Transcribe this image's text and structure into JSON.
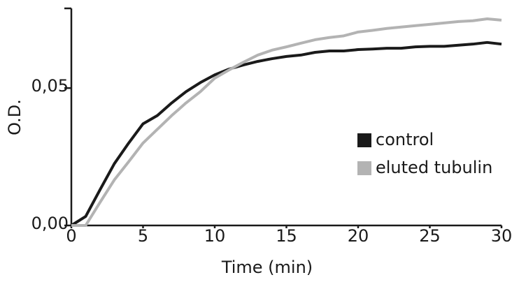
{
  "chart_data": {
    "type": "line",
    "xlabel": "Time (min)",
    "ylabel": "O.D.",
    "x": [
      0,
      1,
      2,
      3,
      4,
      5,
      6,
      7,
      8,
      9,
      10,
      11,
      12,
      13,
      14,
      15,
      16,
      17,
      18,
      19,
      20,
      21,
      22,
      23,
      24,
      25,
      26,
      27,
      28,
      29,
      30
    ],
    "series": [
      {
        "name": "control",
        "color": "#1a1a1a",
        "values": [
          0,
          0.0033,
          0.013,
          0.0225,
          0.03,
          0.037,
          0.04,
          0.0446,
          0.0487,
          0.052,
          0.0548,
          0.0569,
          0.0584,
          0.0597,
          0.0607,
          0.0615,
          0.062,
          0.063,
          0.0635,
          0.0635,
          0.064,
          0.0642,
          0.0645,
          0.0645,
          0.065,
          0.0652,
          0.0652,
          0.0656,
          0.066,
          0.0666,
          0.066
        ]
      },
      {
        "name": "eluted tubulin",
        "color": "#b3b3b3",
        "values": [
          0,
          0,
          0.0084,
          0.0166,
          0.0232,
          0.03,
          0.035,
          0.04,
          0.0446,
          0.0487,
          0.0536,
          0.0566,
          0.0594,
          0.062,
          0.0638,
          0.065,
          0.0663,
          0.0676,
          0.0684,
          0.069,
          0.0704,
          0.071,
          0.0717,
          0.0722,
          0.0727,
          0.0732,
          0.0737,
          0.0742,
          0.0745,
          0.0752,
          0.0747
        ]
      }
    ],
    "xlim": [
      0,
      30
    ],
    "xticks": [
      0,
      5,
      10,
      15,
      20,
      25,
      30
    ],
    "ylim": [
      0,
      0.079
    ],
    "yticks": [
      {
        "value": 0,
        "label": "0,00"
      },
      {
        "value": 0.05,
        "label": "0,05"
      }
    ],
    "grid": false,
    "legend": "right"
  }
}
